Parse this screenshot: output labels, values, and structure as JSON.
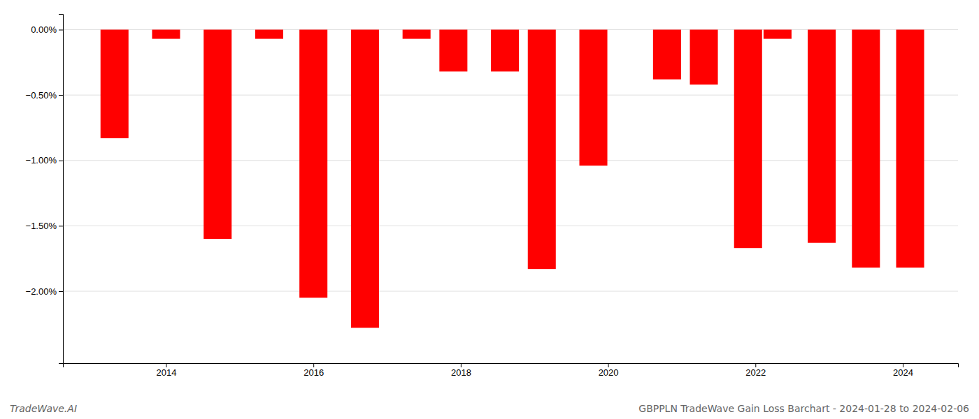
{
  "chart_data": {
    "type": "bar",
    "x": [
      2013.3,
      2014.0,
      2014.7,
      2015.4,
      2016.0,
      2016.7,
      2017.4,
      2017.9,
      2018.6,
      2019.1,
      2019.8,
      2020.8,
      2021.3,
      2021.9,
      2022.3,
      2022.9,
      2023.5,
      2024.1
    ],
    "values": [
      -0.83,
      -0.07,
      -1.6,
      -0.07,
      -2.05,
      -2.28,
      -0.07,
      -0.32,
      -0.32,
      -1.83,
      -1.04,
      -0.38,
      -0.42,
      -1.67,
      -0.07,
      -1.63,
      -1.82,
      -1.82
    ],
    "color": "#ff0000",
    "xlim": [
      2012.6,
      2024.75
    ],
    "xticks": [
      2014,
      2016,
      2018,
      2020,
      2022,
      2024
    ],
    "ylim": [
      -2.55,
      0.12
    ],
    "yticks": [
      {
        "value": 0.0,
        "label": "0.00%"
      },
      {
        "value": -0.5,
        "label": "−0.50%"
      },
      {
        "value": -1.0,
        "label": "−1.00%"
      },
      {
        "value": -1.5,
        "label": "−1.50%"
      },
      {
        "value": -2.0,
        "label": "−2.00%"
      }
    ],
    "grid": true,
    "annotations": [
      "TradeWave.AI",
      "GBPPLN TradeWave Gain Loss Barchart - 2024-01-28 to 2024-02-06"
    ]
  }
}
